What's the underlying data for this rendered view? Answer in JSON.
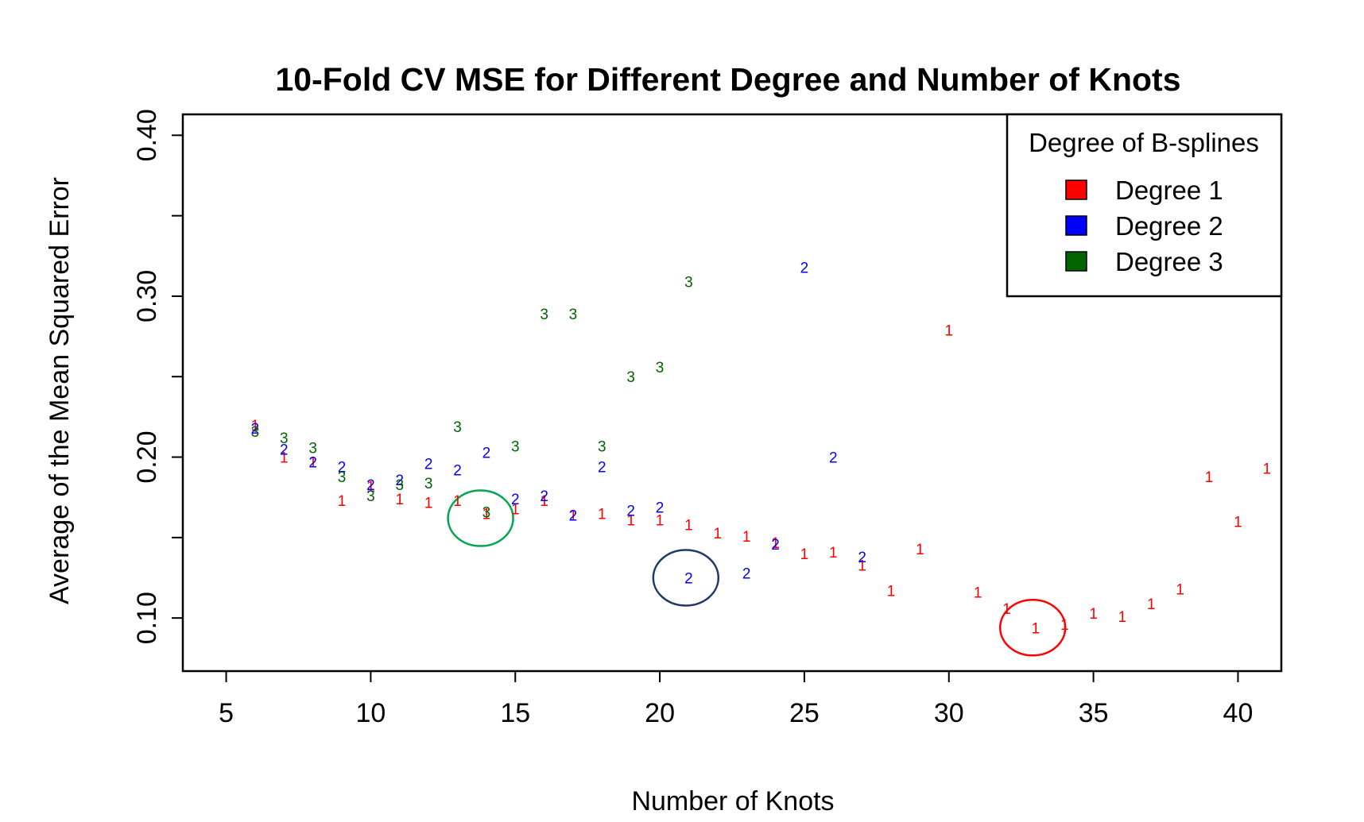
{
  "chart_data": {
    "type": "scatter",
    "title": "10-Fold CV MSE for Different Degree and Number of Knots",
    "xlabel": "Number of Knots",
    "ylabel": "Average of the Mean Squared Error",
    "xlim": [
      3.5,
      41.5
    ],
    "ylim": [
      0.067,
      0.413
    ],
    "xticks": [
      5,
      10,
      15,
      20,
      25,
      30,
      35,
      40
    ],
    "yticks": [
      0.1,
      0.15,
      0.2,
      0.25,
      0.3,
      0.35,
      0.4
    ],
    "ytick_labels": [
      "0.10",
      "",
      "0.20",
      "",
      "0.30",
      "",
      "0.40"
    ],
    "legend": {
      "title": "Degree of B-splines",
      "position": "top-right",
      "entries": [
        {
          "label": "Degree 1",
          "color": "#ff0000"
        },
        {
          "label": "Degree 2",
          "color": "#0000ff"
        },
        {
          "label": "Degree 3",
          "color": "#006400"
        }
      ]
    },
    "series": [
      {
        "name": "Degree 1",
        "symbol": "1",
        "color": "#ff0000",
        "points": [
          [
            6,
            0.22
          ],
          [
            7,
            0.2
          ],
          [
            8,
            0.197
          ],
          [
            9,
            0.173
          ],
          [
            10,
            0.182
          ],
          [
            11,
            0.174
          ],
          [
            12,
            0.172
          ],
          [
            13,
            0.173
          ],
          [
            14,
            0.165
          ],
          [
            15,
            0.168
          ],
          [
            16,
            0.173
          ],
          [
            17,
            0.164
          ],
          [
            18,
            0.165
          ],
          [
            19,
            0.161
          ],
          [
            20,
            0.161
          ],
          [
            21,
            0.158
          ],
          [
            22,
            0.153
          ],
          [
            23,
            0.151
          ],
          [
            24,
            0.147
          ],
          [
            25,
            0.14
          ],
          [
            26,
            0.141
          ],
          [
            27,
            0.133
          ],
          [
            28,
            0.117
          ],
          [
            29,
            0.143
          ],
          [
            30,
            0.279
          ],
          [
            31,
            0.116
          ],
          [
            32,
            0.106
          ],
          [
            33,
            0.094
          ],
          [
            34,
            0.096
          ],
          [
            35,
            0.103
          ],
          [
            36,
            0.101
          ],
          [
            37,
            0.109
          ],
          [
            38,
            0.118
          ],
          [
            39,
            0.188
          ],
          [
            40,
            0.16
          ],
          [
            41,
            0.193
          ]
        ]
      },
      {
        "name": "Degree 2",
        "symbol": "2",
        "color": "#0000ff",
        "points": [
          [
            6,
            0.218
          ],
          [
            7,
            0.205
          ],
          [
            8,
            0.197
          ],
          [
            9,
            0.194
          ],
          [
            10,
            0.183
          ],
          [
            11,
            0.186
          ],
          [
            12,
            0.196
          ],
          [
            13,
            0.192
          ],
          [
            14,
            0.203
          ],
          [
            15,
            0.174
          ],
          [
            16,
            0.176
          ],
          [
            17,
            0.164
          ],
          [
            18,
            0.194
          ],
          [
            19,
            0.167
          ],
          [
            20,
            0.169
          ],
          [
            21,
            0.125
          ],
          [
            23,
            0.128
          ],
          [
            24,
            0.146
          ],
          [
            25,
            0.318
          ],
          [
            26,
            0.2
          ],
          [
            27,
            0.138
          ]
        ]
      },
      {
        "name": "Degree 3",
        "symbol": "3",
        "color": "#006400",
        "points": [
          [
            6,
            0.216
          ],
          [
            7,
            0.212
          ],
          [
            8,
            0.206
          ],
          [
            9,
            0.188
          ],
          [
            10,
            0.176
          ],
          [
            11,
            0.183
          ],
          [
            12,
            0.184
          ],
          [
            13,
            0.219
          ],
          [
            14,
            0.166
          ],
          [
            15,
            0.207
          ],
          [
            16,
            0.289
          ],
          [
            17,
            0.289
          ],
          [
            18,
            0.207
          ],
          [
            19,
            0.25
          ],
          [
            20,
            0.256
          ],
          [
            21,
            0.309
          ]
        ]
      }
    ],
    "annotations": [
      {
        "type": "ellipse",
        "color": "#00a650",
        "x": 13.8,
        "y": 0.162
      },
      {
        "type": "ellipse",
        "color": "#1f3a64",
        "x": 20.9,
        "y": 0.125
      },
      {
        "type": "ellipse",
        "color": "#ff0000",
        "x": 32.9,
        "y": 0.094
      }
    ]
  }
}
